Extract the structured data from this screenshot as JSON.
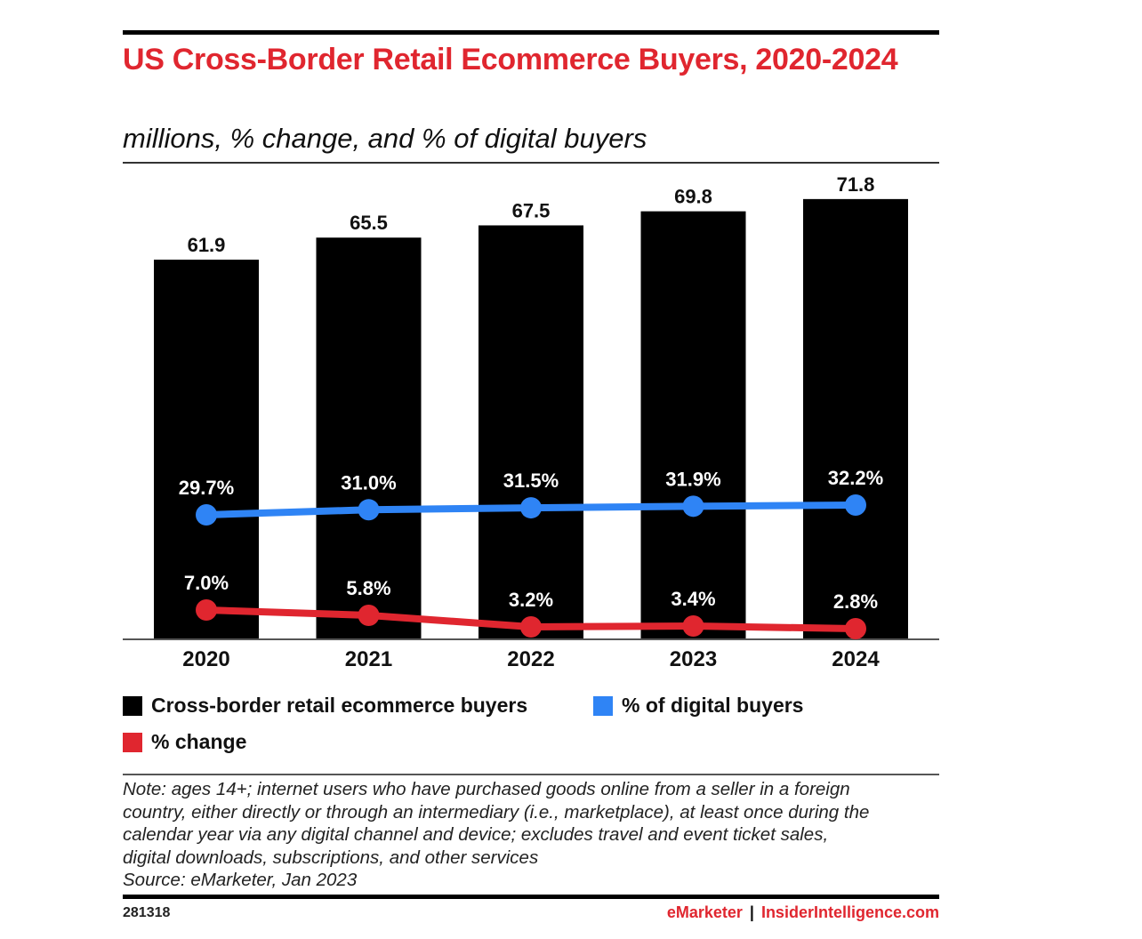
{
  "title": "US Cross-Border Retail Ecommerce Buyers, 2020-2024",
  "subtitle": "millions, % change, and % of digital buyers",
  "colors": {
    "bar": "#000000",
    "digital": "#2f84f5",
    "change": "#e0262f",
    "title": "#e0262f"
  },
  "chart_data": {
    "type": "bar",
    "title": "US Cross-Border Retail Ecommerce Buyers, 2020-2024",
    "subtitle": "millions, % change, and % of digital buyers",
    "categories": [
      "2020",
      "2021",
      "2022",
      "2023",
      "2024"
    ],
    "series": [
      {
        "name": "Cross-border retail ecommerce buyers",
        "type": "bar",
        "values": [
          61.9,
          65.5,
          67.5,
          69.8,
          71.8
        ],
        "labels": [
          "61.9",
          "65.5",
          "67.5",
          "69.8",
          "71.8"
        ]
      },
      {
        "name": "% of digital buyers",
        "type": "line",
        "values": [
          29.7,
          31.0,
          31.5,
          31.9,
          32.2
        ],
        "labels": [
          "29.7%",
          "31.0%",
          "31.5%",
          "31.9%",
          "32.2%"
        ]
      },
      {
        "name": "% change",
        "type": "line",
        "values": [
          7.0,
          5.8,
          3.2,
          3.4,
          2.8
        ],
        "labels": [
          "7.0%",
          "5.8%",
          "3.2%",
          "3.4%",
          "2.8%"
        ]
      }
    ],
    "grid": false,
    "legend": "bottom"
  },
  "legend": [
    {
      "label": "Cross-border retail ecommerce buyers"
    },
    {
      "label": "% of digital buyers"
    },
    {
      "label": "% change"
    }
  ],
  "note_lines": [
    "Note: ages 14+; internet users who have purchased goods online from a seller in a foreign",
    "country, either directly or through an intermediary (i.e., marketplace), at least once during the",
    "calendar year via any digital channel and device; excludes travel and event ticket sales,",
    "digital downloads, subscriptions, and other services",
    "Source: eMarketer, Jan 2023"
  ],
  "footer": {
    "id": "281318",
    "brand": "eMarketer",
    "separator": "|",
    "site": "InsiderIntelligence.com"
  }
}
